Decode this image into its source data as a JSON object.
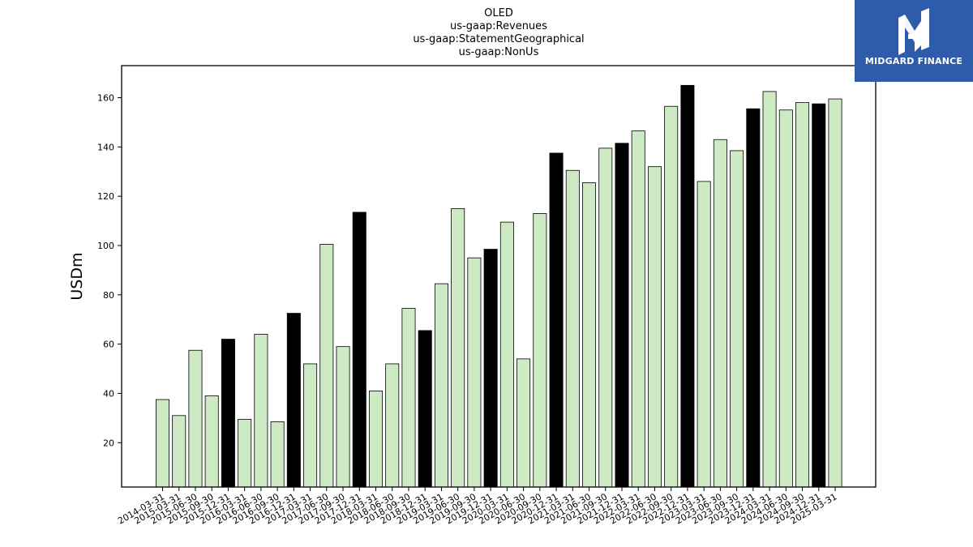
{
  "chart_data": {
    "type": "bar",
    "title_lines": [
      "OLED",
      "us-gaap:Revenues",
      "us-gaap:StatementGeographical",
      "us-gaap:NonUs"
    ],
    "ylabel": "USDm",
    "xlabel": "",
    "ylim": [
      2,
      173
    ],
    "yticks": [
      20,
      40,
      60,
      80,
      100,
      120,
      140,
      160
    ],
    "categories": [
      "2014-03-31",
      "2015-03-31",
      "2015-06-30",
      "2015-09-30",
      "2015-12-31",
      "2016-03-31",
      "2016-06-30",
      "2016-09-30",
      "2016-12-31",
      "2017-03-31",
      "2017-06-30",
      "2017-09-30",
      "2017-12-31",
      "2018-03-31",
      "2018-06-30",
      "2018-09-30",
      "2018-12-31",
      "2019-03-31",
      "2019-06-30",
      "2019-09-30",
      "2019-12-31",
      "2020-03-31",
      "2020-06-30",
      "2020-09-30",
      "2020-12-31",
      "2021-03-31",
      "2021-06-30",
      "2021-09-30",
      "2021-12-31",
      "2022-03-31",
      "2022-06-30",
      "2022-09-30",
      "2022-12-31",
      "2023-03-31",
      "2023-06-30",
      "2023-09-30",
      "2023-12-31",
      "2024-03-31",
      "2024-06-30",
      "2024-09-30",
      "2024-12-31",
      "2025-03-31"
    ],
    "values": [
      37.5,
      31,
      57.5,
      39,
      62,
      29.5,
      64,
      28.5,
      72.5,
      52,
      100.5,
      59,
      113.5,
      41,
      52,
      74.5,
      65.5,
      84.5,
      115,
      95,
      98.5,
      109.5,
      54,
      113,
      137.5,
      130.5,
      125.5,
      139.5,
      141.5,
      146.5,
      132,
      156.5,
      165,
      126,
      143,
      138.5,
      155.5,
      162.5,
      155,
      158,
      157.5,
      159.5
    ],
    "highlight": [
      false,
      false,
      false,
      false,
      true,
      false,
      false,
      false,
      true,
      false,
      false,
      false,
      true,
      false,
      false,
      false,
      true,
      false,
      false,
      false,
      true,
      false,
      false,
      false,
      true,
      false,
      false,
      false,
      true,
      false,
      false,
      false,
      true,
      false,
      false,
      false,
      true,
      false,
      false,
      false,
      true,
      false
    ],
    "colors": {
      "bar": "#cdeac4",
      "highlight_bar": "#000000",
      "edge": "#000000"
    },
    "grid": false,
    "legend": "none"
  },
  "logo": {
    "text": "MIDGARD FINANCE",
    "background": "#2f5bab"
  }
}
